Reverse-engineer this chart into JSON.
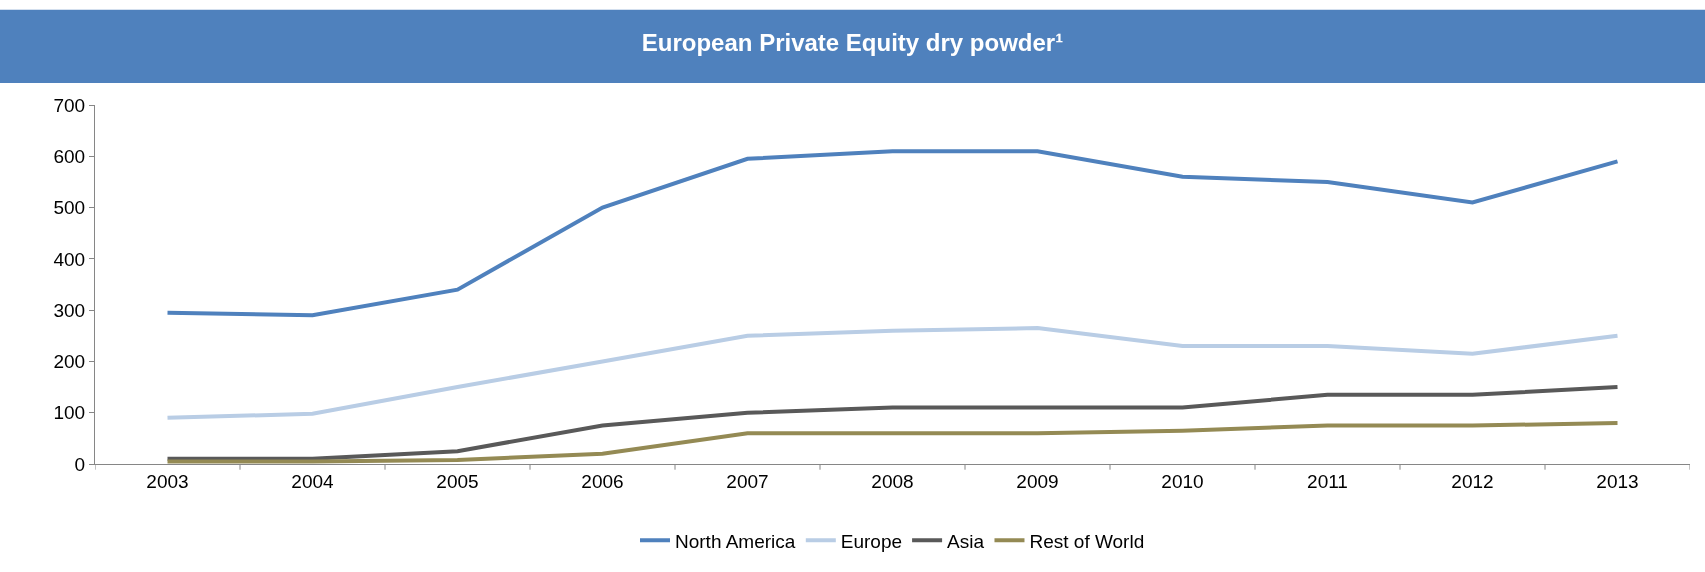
{
  "chart_data": {
    "type": "line",
    "title": "European Private Equity dry powder¹",
    "categories": [
      "2003",
      "2004",
      "2005",
      "2006",
      "2007",
      "2008",
      "2009",
      "2010",
      "2011",
      "2012",
      "2013"
    ],
    "series": [
      {
        "name": "North America",
        "color": "#4f81bd",
        "values": [
          295,
          290,
          340,
          500,
          595,
          610,
          610,
          560,
          550,
          510,
          590
        ]
      },
      {
        "name": "Europe",
        "color": "#b9cde5",
        "values": [
          90,
          98,
          150,
          200,
          250,
          260,
          265,
          230,
          230,
          215,
          250
        ]
      },
      {
        "name": "Asia",
        "color": "#595959",
        "values": [
          10,
          10,
          25,
          75,
          100,
          110,
          110,
          110,
          135,
          135,
          150
        ]
      },
      {
        "name": "Rest of World",
        "color": "#948a54",
        "values": [
          5,
          5,
          8,
          20,
          60,
          60,
          60,
          65,
          75,
          75,
          80
        ]
      }
    ],
    "ylim": [
      0,
      700
    ],
    "yticks": [
      0,
      100,
      200,
      300,
      400,
      500,
      600,
      700
    ],
    "legend": "bottom",
    "marker": "none",
    "line_style": "solid"
  }
}
